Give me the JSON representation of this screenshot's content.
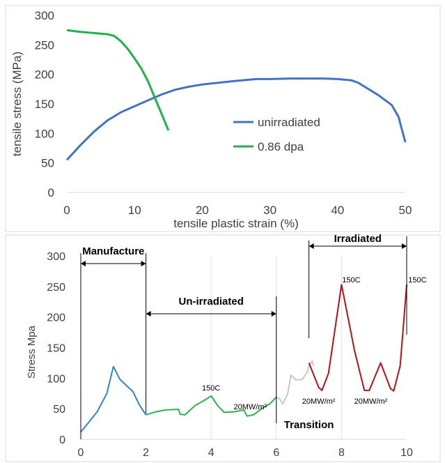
{
  "chart_data": [
    {
      "type": "line",
      "title": "",
      "xlabel": "tensile plastic strain (%)",
      "ylabel": "tensile stress (MPa)",
      "xlim": [
        0,
        50
      ],
      "ylim": [
        0,
        300
      ],
      "x_ticks": [
        "0",
        "10",
        "20",
        "30",
        "40",
        "50"
      ],
      "y_ticks": [
        "0",
        "50",
        "100",
        "150",
        "200",
        "250",
        "300"
      ],
      "grid": false,
      "legend_position": "center-right",
      "series": [
        {
          "name": "unirradiated",
          "color": "#4472c4",
          "points": [
            [
              0,
              55
            ],
            [
              2,
              80
            ],
            [
              4,
              103
            ],
            [
              6,
              122
            ],
            [
              8,
              136
            ],
            [
              10,
              146
            ],
            [
              12,
              156
            ],
            [
              14,
              166
            ],
            [
              16,
              174
            ],
            [
              18,
              179
            ],
            [
              20,
              183
            ],
            [
              25,
              189
            ],
            [
              28,
              192
            ],
            [
              30,
              192
            ],
            [
              33,
              193
            ],
            [
              38,
              193
            ],
            [
              40,
              192
            ],
            [
              42,
              190
            ],
            [
              43,
              186
            ],
            [
              44,
              179
            ],
            [
              46,
              165
            ],
            [
              48,
              148
            ],
            [
              49,
              128
            ],
            [
              50,
              85
            ]
          ]
        },
        {
          "name": "0.86 dpa",
          "color": "#1fb24a",
          "points": [
            [
              0,
              275
            ],
            [
              2,
              272
            ],
            [
              4,
              270
            ],
            [
              6,
              268
            ],
            [
              7,
              265
            ],
            [
              8,
              256
            ],
            [
              9,
              243
            ],
            [
              10,
              227
            ],
            [
              11,
              210
            ],
            [
              12,
              188
            ],
            [
              13,
              160
            ],
            [
              14,
              133
            ],
            [
              15,
              105
            ]
          ]
        }
      ]
    },
    {
      "type": "line",
      "title": "",
      "xlabel": "",
      "ylabel": "Stress Mpa",
      "xlim": [
        0,
        10
      ],
      "ylim": [
        0,
        300
      ],
      "x_ticks": [
        "0",
        "2",
        "4",
        "6",
        "8",
        "10"
      ],
      "y_ticks": [
        "0",
        "50",
        "100",
        "150",
        "200",
        "250",
        "300"
      ],
      "grid": false,
      "segments": [
        {
          "color": "#2e86c8",
          "points": [
            [
              0,
              12
            ],
            [
              0.2,
              25
            ],
            [
              0.5,
              45
            ],
            [
              0.8,
              75
            ],
            [
              1.0,
              119
            ],
            [
              1.2,
              98
            ],
            [
              1.4,
              88
            ],
            [
              1.6,
              78
            ],
            [
              1.8,
              56
            ],
            [
              2.0,
              40
            ]
          ]
        },
        {
          "color": "#2db34a",
          "points": [
            [
              2.0,
              40
            ],
            [
              2.3,
              45
            ],
            [
              2.6,
              48
            ],
            [
              3.0,
              49
            ],
            [
              3.05,
              41
            ],
            [
              3.2,
              40
            ],
            [
              3.5,
              55
            ],
            [
              3.8,
              64
            ],
            [
              4.0,
              71
            ],
            [
              4.2,
              55
            ],
            [
              4.4,
              44
            ],
            [
              4.7,
              45
            ],
            [
              5.0,
              48
            ],
            [
              5.1,
              38
            ],
            [
              5.3,
              40
            ],
            [
              5.6,
              52
            ],
            [
              5.8,
              58
            ],
            [
              6.0,
              69
            ]
          ]
        },
        {
          "color": "#c8c8c8",
          "points": [
            [
              6.0,
              69
            ],
            [
              6.1,
              66
            ],
            [
              6.2,
              58
            ],
            [
              6.35,
              75
            ],
            [
              6.45,
              105
            ],
            [
              6.6,
              97
            ],
            [
              6.8,
              98
            ],
            [
              6.95,
              110
            ],
            [
              7.0,
              120
            ],
            [
              7.1,
              128
            ],
            [
              7.15,
              120
            ]
          ]
        },
        {
          "color": "#b31217",
          "points": [
            [
              7.0,
              125
            ],
            [
              7.3,
              85
            ],
            [
              7.4,
              80
            ],
            [
              7.6,
              108
            ],
            [
              8.0,
              253
            ],
            [
              8.4,
              145
            ],
            [
              8.7,
              80
            ],
            [
              8.85,
              80
            ],
            [
              9.2,
              125
            ],
            [
              9.5,
              83
            ],
            [
              9.6,
              79
            ],
            [
              9.8,
              120
            ],
            [
              10.0,
              253
            ]
          ]
        }
      ],
      "annotations": {
        "manufacture": "Manufacture",
        "unirradiated": "Un-irradiated",
        "irradiated": "Irradiated",
        "transition": "Transition",
        "temp_a": "150C",
        "temp_b": "150C",
        "temp_c": "150C",
        "power_a": "20MW/m²",
        "power_b": "20MW/m²",
        "power_c": "20MW/m²"
      }
    }
  ]
}
